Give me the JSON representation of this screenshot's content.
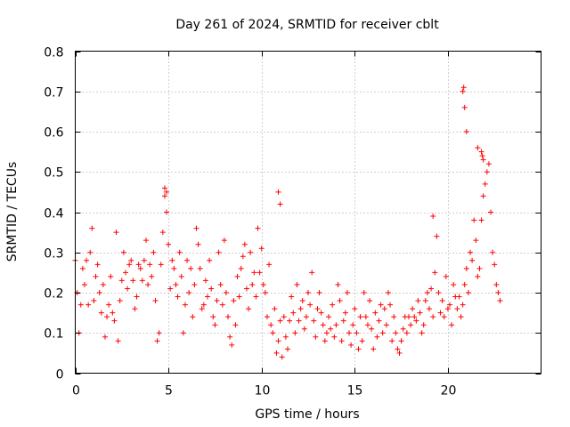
{
  "chart_data": {
    "type": "scatter",
    "title": "Day 261 of 2024, SRMTID for receiver cblt",
    "xlabel": "GPS time / hours",
    "ylabel": "SRMTID / TECUs",
    "xlim": [
      0,
      25
    ],
    "ylim": [
      0,
      0.8
    ],
    "xticks": [
      0,
      5,
      10,
      15,
      20
    ],
    "yticks": [
      0,
      0.1,
      0.2,
      0.3,
      0.4,
      0.5,
      0.6,
      0.7,
      0.8
    ],
    "xtick_labels": [
      "0",
      "5",
      "10",
      "15",
      "20"
    ],
    "ytick_labels": [
      "0",
      "0.1",
      "0.2",
      "0.3",
      "0.4",
      "0.5",
      "0.6",
      "0.7",
      "0.8"
    ],
    "grid": true,
    "marker": "+",
    "color": "#ff0000",
    "series": [
      {
        "name": "cblt",
        "x": [
          0.0,
          0.1,
          0.2,
          0.3,
          0.4,
          0.5,
          0.6,
          0.7,
          0.8,
          0.9,
          1.0,
          1.1,
          1.2,
          1.3,
          1.4,
          1.5,
          1.6,
          1.7,
          1.8,
          1.9,
          2.0,
          2.1,
          2.2,
          2.3,
          2.4,
          2.5,
          2.6,
          2.7,
          2.8,
          2.9,
          3.0,
          3.1,
          3.2,
          3.3,
          3.4,
          3.5,
          3.6,
          3.7,
          3.8,
          3.9,
          4.0,
          4.1,
          4.2,
          4.3,
          4.4,
          4.5,
          4.6,
          4.7,
          4.8,
          4.9,
          5.0,
          5.1,
          5.2,
          5.3,
          5.4,
          5.5,
          5.6,
          5.7,
          5.8,
          5.9,
          6.0,
          6.1,
          6.2,
          6.3,
          6.4,
          6.5,
          6.6,
          6.7,
          6.8,
          6.9,
          7.0,
          7.1,
          7.2,
          7.3,
          7.4,
          7.5,
          7.6,
          7.7,
          7.8,
          7.9,
          8.0,
          8.1,
          8.2,
          8.3,
          8.4,
          8.5,
          8.6,
          8.7,
          8.8,
          8.9,
          9.0,
          9.1,
          9.2,
          9.3,
          9.4,
          9.5,
          9.6,
          9.7,
          9.8,
          9.9,
          10.0,
          10.1,
          10.2,
          10.3,
          10.4,
          10.5,
          10.6,
          10.7,
          10.8,
          10.9,
          11.0,
          11.1,
          11.2,
          11.3,
          11.4,
          11.5,
          11.6,
          11.7,
          11.8,
          11.9,
          12.0,
          12.1,
          12.2,
          12.3,
          12.4,
          12.5,
          12.6,
          12.7,
          12.8,
          12.9,
          13.0,
          13.1,
          13.2,
          13.3,
          13.4,
          13.5,
          13.6,
          13.7,
          13.8,
          13.9,
          14.0,
          14.1,
          14.2,
          14.3,
          14.4,
          14.5,
          14.6,
          14.7,
          14.8,
          14.9,
          15.0,
          15.1,
          15.2,
          15.3,
          15.4,
          15.5,
          15.6,
          15.7,
          15.8,
          15.9,
          16.0,
          16.1,
          16.2,
          16.3,
          16.4,
          16.5,
          16.6,
          16.7,
          16.8,
          16.9,
          17.0,
          17.1,
          17.2,
          17.3,
          17.4,
          17.5,
          17.6,
          17.7,
          17.8,
          17.9,
          18.0,
          18.1,
          18.2,
          18.3,
          18.4,
          18.5,
          18.6,
          18.7,
          18.8,
          18.9,
          19.0,
          19.1,
          19.2,
          19.3,
          19.4,
          19.5,
          19.6,
          19.7,
          19.8,
          19.9,
          20.0,
          20.1,
          20.2,
          20.3,
          20.4,
          20.5,
          20.6,
          20.7,
          20.8,
          20.9,
          21.0,
          21.1,
          21.2,
          21.3,
          21.4,
          21.5,
          21.6,
          21.7,
          21.8,
          21.9,
          22.0,
          22.1,
          22.2,
          22.3,
          22.4,
          22.5,
          22.6,
          22.7,
          22.8,
          4.8,
          4.9,
          10.9,
          11.0,
          19.2,
          20.8,
          20.85,
          20.9,
          21.0,
          21.6,
          21.8,
          21.85,
          21.9
        ],
        "y": [
          0.28,
          0.2,
          0.1,
          0.17,
          0.26,
          0.22,
          0.28,
          0.17,
          0.3,
          0.36,
          0.18,
          0.24,
          0.27,
          0.2,
          0.15,
          0.22,
          0.09,
          0.14,
          0.17,
          0.24,
          0.15,
          0.13,
          0.35,
          0.08,
          0.18,
          0.23,
          0.3,
          0.25,
          0.21,
          0.27,
          0.28,
          0.23,
          0.16,
          0.19,
          0.27,
          0.26,
          0.23,
          0.28,
          0.33,
          0.22,
          0.27,
          0.24,
          0.3,
          0.18,
          0.08,
          0.1,
          0.27,
          0.35,
          0.44,
          0.4,
          0.32,
          0.21,
          0.28,
          0.26,
          0.22,
          0.19,
          0.3,
          0.24,
          0.1,
          0.17,
          0.28,
          0.2,
          0.26,
          0.14,
          0.22,
          0.36,
          0.32,
          0.26,
          0.16,
          0.17,
          0.23,
          0.19,
          0.28,
          0.21,
          0.14,
          0.12,
          0.18,
          0.3,
          0.22,
          0.17,
          0.33,
          0.2,
          0.14,
          0.09,
          0.07,
          0.18,
          0.12,
          0.24,
          0.19,
          0.26,
          0.29,
          0.32,
          0.21,
          0.16,
          0.3,
          0.22,
          0.25,
          0.19,
          0.36,
          0.25,
          0.31,
          0.22,
          0.2,
          0.14,
          0.27,
          0.12,
          0.1,
          0.16,
          0.05,
          0.08,
          0.13,
          0.04,
          0.14,
          0.09,
          0.06,
          0.13,
          0.19,
          0.15,
          0.1,
          0.22,
          0.13,
          0.16,
          0.18,
          0.11,
          0.14,
          0.2,
          0.17,
          0.25,
          0.13,
          0.09,
          0.16,
          0.2,
          0.15,
          0.12,
          0.08,
          0.1,
          0.14,
          0.11,
          0.17,
          0.09,
          0.12,
          0.22,
          0.18,
          0.08,
          0.13,
          0.15,
          0.2,
          0.1,
          0.07,
          0.12,
          0.16,
          0.1,
          0.06,
          0.14,
          0.08,
          0.2,
          0.14,
          0.12,
          0.18,
          0.11,
          0.06,
          0.15,
          0.09,
          0.13,
          0.17,
          0.1,
          0.16,
          0.12,
          0.2,
          0.17,
          0.08,
          0.14,
          0.1,
          0.06,
          0.05,
          0.08,
          0.11,
          0.14,
          0.1,
          0.14,
          0.12,
          0.16,
          0.14,
          0.13,
          0.18,
          0.15,
          0.1,
          0.12,
          0.18,
          0.2,
          0.16,
          0.21,
          0.14,
          0.25,
          0.34,
          0.2,
          0.15,
          0.18,
          0.14,
          0.24,
          0.16,
          0.17,
          0.12,
          0.22,
          0.19,
          0.16,
          0.19,
          0.14,
          0.17,
          0.22,
          0.26,
          0.2,
          0.3,
          0.28,
          0.38,
          0.33,
          0.24,
          0.26,
          0.38,
          0.44,
          0.47,
          0.5,
          0.52,
          0.4,
          0.3,
          0.27,
          0.22,
          0.2,
          0.18,
          0.46,
          0.45,
          0.45,
          0.42,
          0.39,
          0.7,
          0.71,
          0.66,
          0.6,
          0.56,
          0.55,
          0.54,
          0.53
        ]
      }
    ]
  }
}
